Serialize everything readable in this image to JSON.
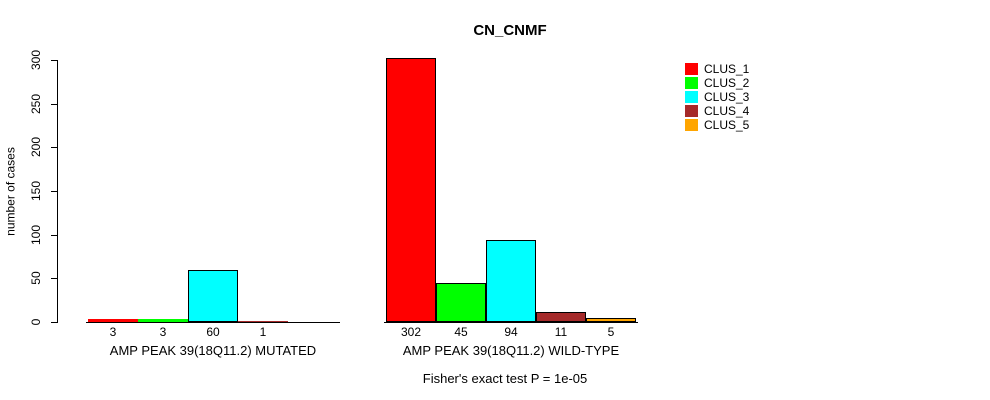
{
  "title": "CN_CNMF",
  "y_axis": {
    "label": "number of cases"
  },
  "footer": "Fisher's exact test P = 1e-05",
  "colors": {
    "background": "#FFFFFF",
    "axis": "#000000",
    "text": "#000000"
  },
  "legend": {
    "position": "right",
    "entries": [
      {
        "label": "CLUS_1",
        "color": "#FF0000"
      },
      {
        "label": "CLUS_2",
        "color": "#00FF00"
      },
      {
        "label": "CLUS_3",
        "color": "#00FFFF"
      },
      {
        "label": "CLUS_4",
        "color": "#A52A2A"
      },
      {
        "label": "CLUS_5",
        "color": "#FFA500"
      }
    ]
  },
  "chart_data": {
    "type": "bar",
    "title": "CN_CNMF",
    "xlabel": "",
    "ylabel": "number of cases",
    "ylim": [
      0,
      300
    ],
    "yticks": [
      0,
      50,
      100,
      150,
      200,
      250,
      300
    ],
    "grid": false,
    "legend_position": "right",
    "series": [
      {
        "name": "CLUS_1",
        "color": "#FF0000"
      },
      {
        "name": "CLUS_2",
        "color": "#00FF00"
      },
      {
        "name": "CLUS_3",
        "color": "#00FFFF"
      },
      {
        "name": "CLUS_4",
        "color": "#A52A2A"
      },
      {
        "name": "CLUS_5",
        "color": "#FFA500"
      }
    ],
    "groups": [
      {
        "category": "AMP PEAK 39(18Q11.2) MUTATED",
        "values": [
          3,
          3,
          60,
          1,
          0
        ],
        "bar_labels": [
          "3",
          "3",
          "60",
          "1",
          ""
        ]
      },
      {
        "category": "AMP PEAK 39(18Q11.2) WILD-TYPE",
        "values": [
          302,
          45,
          94,
          11,
          5
        ],
        "bar_labels": [
          "302",
          "45",
          "94",
          "11",
          "5"
        ]
      }
    ],
    "annotation": "Fisher's exact test P = 1e-05"
  }
}
